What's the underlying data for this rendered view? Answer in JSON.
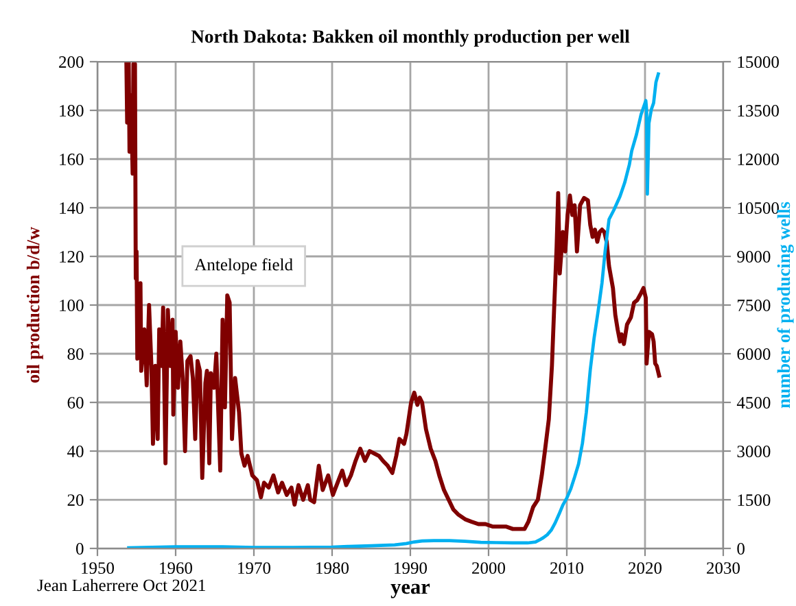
{
  "chart_data": {
    "type": "line",
    "title": "North Dakota: Bakken oil monthly production per well",
    "xlabel": "year",
    "ylabel": "oil production b/d/w",
    "y2label": "number of producing wells",
    "annotations": [
      "Antelope field",
      "Jean Laherrere Oct 2021"
    ],
    "series": [
      {
        "color": "#800000",
        "x": [
          1953.7,
          1953.8,
          1954.0,
          1954.1,
          1954.3,
          1954.5,
          1954.6,
          1954.8,
          1954.9,
          1955.0,
          1955.1,
          1955.3,
          1955.5,
          1955.6,
          1956.0,
          1956.3,
          1956.6,
          1956.9,
          1957.1,
          1957.4,
          1957.7,
          1957.9,
          1958.2,
          1958.4,
          1958.7,
          1959.0,
          1959.3,
          1959.6,
          1959.7,
          1960.0,
          1960.3,
          1960.6,
          1960.9,
          1961.2,
          1961.5,
          1961.9,
          1962.2,
          1962.5,
          1962.8,
          1963.1,
          1963.4,
          1963.8,
          1964.0,
          1964.3,
          1964.5,
          1964.9,
          1965.2,
          1965.7,
          1966.0,
          1966.3,
          1966.6,
          1966.9,
          1967.2,
          1967.6,
          1968.1,
          1968.4,
          1968.8,
          1969.2,
          1969.8,
          1970.4,
          1970.9,
          1971.3,
          1971.9,
          1972.5,
          1973.1,
          1973.6,
          1974.2,
          1974.8,
          1975.2,
          1975.7,
          1976.3,
          1976.9,
          1977.2,
          1977.7,
          1978.3,
          1978.8,
          1979.5,
          1980.1,
          1980.7,
          1981.3,
          1981.8,
          1982.4,
          1983.0,
          1983.6,
          1984.2,
          1984.8,
          1985.4,
          1986.0,
          1986.5,
          1987.1,
          1987.7,
          1988.2,
          1988.6,
          1989.2,
          1989.5,
          1990.1,
          1990.5,
          1990.9,
          1991.2,
          1991.5,
          1992.0,
          1992.6,
          1993.2,
          1993.7,
          1994.3,
          1994.9,
          1995.5,
          1996.1,
          1997.0,
          1997.8,
          1998.7,
          1999.6,
          2000.5,
          2001.3,
          2002.2,
          2003.1,
          2004.0,
          2004.6,
          2005.1,
          2005.7,
          2006.3,
          2006.8,
          2007.2,
          2007.7,
          2008.1,
          2008.4,
          2008.7,
          2008.9,
          2009.1,
          2009.5,
          2009.8,
          2010.1,
          2010.4,
          2010.7,
          2011.0,
          2011.3,
          2011.7,
          2012.2,
          2012.7,
          2013.0,
          2013.3,
          2013.6,
          2013.9,
          2014.2,
          2014.5,
          2014.8,
          2015.1,
          2015.4,
          2015.9,
          2016.2,
          2016.5,
          2016.8,
          2017.0,
          2017.3,
          2017.7,
          2018.2,
          2018.6,
          2019.0,
          2019.5,
          2019.8,
          2020.1,
          2020.2,
          2020.5,
          2020.9,
          2021.1,
          2021.3,
          2021.5,
          2021.8
        ],
        "values": [
          200,
          175,
          200,
          163,
          186,
          154,
          199,
          199,
          111,
          122,
          78,
          90,
          109,
          73,
          90,
          67,
          100,
          75,
          43,
          75,
          45,
          90,
          75,
          99,
          35,
          98,
          75,
          94,
          55,
          89,
          66,
          85,
          70,
          40,
          77,
          79,
          70,
          45,
          77,
          73,
          29,
          68,
          73,
          35,
          72,
          66,
          80,
          32,
          94,
          58,
          104,
          101,
          45,
          70,
          56,
          39,
          34,
          38,
          30,
          28,
          21,
          27,
          25,
          30,
          23,
          27,
          22,
          25,
          18,
          26,
          20,
          26,
          20,
          19,
          34,
          24,
          30,
          22,
          27,
          32,
          26,
          30,
          36,
          41,
          36,
          40,
          39,
          38,
          36,
          34,
          31,
          38,
          45,
          43,
          47,
          60,
          64,
          59,
          62,
          60,
          49,
          41,
          36,
          30,
          24,
          20,
          16,
          14,
          12,
          11,
          10,
          10,
          9,
          9,
          9,
          8,
          8,
          8,
          11,
          17,
          20,
          30,
          40,
          53,
          75,
          100,
          124,
          146,
          113,
          130,
          122,
          137,
          145,
          137,
          141,
          122,
          141,
          144,
          143,
          133,
          128,
          131,
          126,
          130,
          131,
          130,
          126,
          116,
          107,
          96,
          90,
          85,
          88,
          84,
          92,
          95,
          101,
          102,
          105,
          107,
          103,
          76,
          89,
          88,
          85,
          76,
          75,
          71
        ]
      },
      {
        "color": "#00b0f0",
        "axis": "y2",
        "x": [
          1954,
          1956,
          1958,
          1960,
          1963,
          1966,
          1968,
          1970,
          1975,
          1980,
          1982,
          1985,
          1988,
          1989.5,
          1990.5,
          1991.5,
          1993,
          1995,
          1997,
          1999,
          2001,
          2003,
          2005,
          2006,
          2006.5,
          2007,
          2007.5,
          2008,
          2008.5,
          2009,
          2009.5,
          2010,
          2010.5,
          2011,
          2011.5,
          2012,
          2012.5,
          2013,
          2013.5,
          2014,
          2014.5,
          2014.9,
          2015.4,
          2016,
          2016.8,
          2017.4,
          2018,
          2018.3,
          2018.9,
          2019.5,
          2019.9,
          2020.1,
          2020.2,
          2020.3,
          2020.5,
          2020.8,
          2021.1,
          2021.4,
          2021.7
        ],
        "values": [
          20,
          30,
          40,
          50,
          50,
          50,
          40,
          30,
          30,
          40,
          60,
          80,
          110,
          150,
          200,
          230,
          240,
          240,
          220,
          190,
          180,
          170,
          170,
          200,
          260,
          330,
          420,
          560,
          780,
          1050,
          1340,
          1550,
          1830,
          2200,
          2600,
          3240,
          4200,
          5500,
          6500,
          7300,
          8180,
          9160,
          10140,
          10420,
          10850,
          11270,
          11830,
          12250,
          12750,
          13380,
          13660,
          13800,
          13520,
          10920,
          13100,
          13520,
          13730,
          14370,
          14620
        ]
      }
    ],
    "xlim": [
      1950,
      2030
    ],
    "xticks": [
      1950,
      1960,
      1970,
      1980,
      1990,
      2000,
      2010,
      2020,
      2030
    ],
    "ylim": [
      0,
      200
    ],
    "yticks": [
      0,
      20,
      40,
      60,
      80,
      100,
      120,
      140,
      160,
      180,
      200
    ],
    "y2lim": [
      0,
      15000
    ],
    "y2ticks": [
      0,
      1500,
      3000,
      4500,
      6000,
      7500,
      9000,
      10500,
      12000,
      13500,
      15000
    ],
    "grid": true,
    "line_style": "solid"
  }
}
